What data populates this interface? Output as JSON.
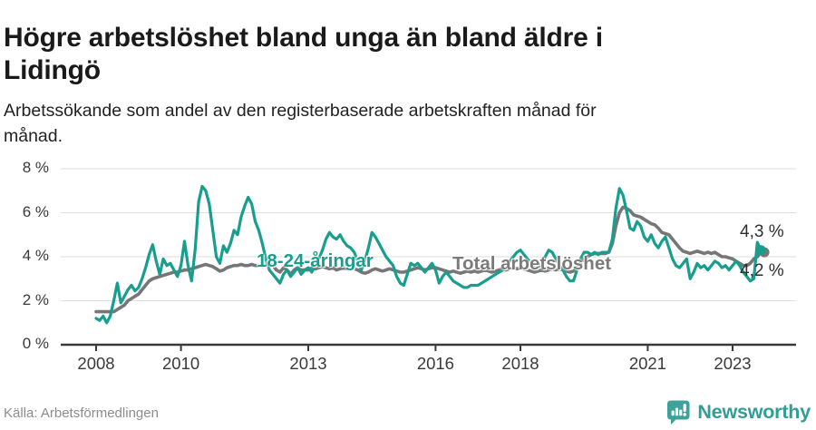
{
  "header": {
    "title": "Högre arbetslöshet bland unga än bland äldre i Lidingö",
    "title_lines": [
      "Högre arbetslöshet bland unga än bland äldre i",
      "Lidingö"
    ],
    "subtitle": "Arbetssökande som andel av den registerbaserade arbetskraften månad för månad.",
    "subtitle_lines": [
      "Arbetssökande som andel av den registerbaserade arbetskraften månad för",
      "månad."
    ]
  },
  "footer": {
    "source": "Källa: Arbetsförmedlingen",
    "brand": "Newsworthy"
  },
  "colors": {
    "youth_line": "#189e8e",
    "total_line": "#767676",
    "grid": "#dedede",
    "axis": "#3a3a3a",
    "logo": "#3fa29a",
    "brand_text": "#2f9e95"
  },
  "chart_data": {
    "type": "line",
    "title": "Högre arbetslöshet bland unga än bland äldre i Lidingö",
    "subtitle": "Arbetssökande som andel av den registerbaserade arbetskraften månad för månad.",
    "unit": "%",
    "x_start_year": 2008,
    "points_per_year": 12,
    "xlim": [
      2008,
      2023.83
    ],
    "ylim": [
      0,
      8
    ],
    "grid": true,
    "grid_color": "#dedede",
    "axis_color": "#3a3a3a",
    "y_ticks": [
      {
        "value": 8,
        "label": "8 %"
      },
      {
        "value": 6,
        "label": "6 %"
      },
      {
        "value": 4,
        "label": "4 %"
      },
      {
        "value": 2,
        "label": "2 %"
      },
      {
        "value": 0,
        "label": "0 %"
      }
    ],
    "x_ticks": [
      {
        "year": 2008,
        "label": "2008"
      },
      {
        "year": 2010,
        "label": "2010"
      },
      {
        "year": 2013,
        "label": "2013"
      },
      {
        "year": 2016,
        "label": "2016"
      },
      {
        "year": 2018,
        "label": "2018"
      },
      {
        "year": 2021,
        "label": "2021"
      },
      {
        "year": 2023,
        "label": "2023"
      }
    ],
    "series": [
      {
        "name": "Total arbetslöshet",
        "color": "#767676",
        "end_label": "4,2 %",
        "end_value": 4.2,
        "values": [
          1.5,
          1.5,
          1.5,
          1.5,
          1.5,
          1.5,
          1.6,
          1.7,
          1.8,
          2.0,
          2.1,
          2.2,
          2.3,
          2.5,
          2.7,
          2.9,
          3.0,
          3.05,
          3.1,
          3.15,
          3.2,
          3.25,
          3.3,
          3.3,
          3.35,
          3.4,
          3.4,
          3.45,
          3.5,
          3.55,
          3.6,
          3.65,
          3.6,
          3.55,
          3.45,
          3.35,
          3.4,
          3.5,
          3.55,
          3.6,
          3.6,
          3.65,
          3.6,
          3.6,
          3.65,
          3.6,
          3.6,
          3.6,
          3.6,
          3.65,
          3.6,
          3.4,
          3.3,
          3.5,
          3.4,
          3.2,
          3.4,
          3.5,
          3.4,
          3.4,
          3.4,
          3.5,
          3.45,
          3.5,
          3.55,
          3.5,
          3.45,
          3.5,
          3.4,
          3.45,
          3.5,
          3.45,
          3.5,
          3.45,
          3.4,
          3.3,
          3.25,
          3.3,
          3.4,
          3.45,
          3.4,
          3.35,
          3.4,
          3.45,
          3.4,
          3.35,
          3.3,
          3.3,
          3.35,
          3.4,
          3.45,
          3.5,
          3.45,
          3.4,
          3.45,
          3.5,
          3.5,
          3.45,
          3.4,
          3.35,
          3.3,
          3.35,
          3.3,
          3.25,
          3.3,
          3.35,
          3.3,
          3.35,
          3.3,
          3.35,
          3.4,
          3.35,
          3.3,
          3.35,
          3.4,
          3.45,
          3.4,
          3.45,
          3.5,
          3.45,
          3.5,
          3.45,
          3.4,
          3.35,
          3.3,
          3.35,
          3.4,
          3.35,
          3.4,
          3.45,
          3.4,
          3.45,
          3.4,
          3.35,
          3.3,
          3.35,
          3.5,
          3.7,
          3.9,
          4.0,
          4.1,
          4.15,
          4.15,
          4.15,
          4.15,
          4.2,
          4.6,
          5.4,
          6.0,
          6.25,
          6.2,
          6.1,
          5.9,
          5.85,
          5.8,
          5.7,
          5.6,
          5.5,
          5.45,
          5.3,
          5.1,
          5.05,
          5.0,
          4.8,
          4.6,
          4.4,
          4.25,
          4.2,
          4.15,
          4.2,
          4.25,
          4.2,
          4.15,
          4.2,
          4.15,
          4.2,
          4.1,
          4.0,
          4.0,
          3.95,
          3.9,
          3.8,
          3.7,
          3.6,
          3.6,
          3.7,
          3.9,
          4.0,
          4.2,
          4.2
        ]
      },
      {
        "name": "18-24-åringar",
        "color": "#189e8e",
        "end_label": "4,3 %",
        "end_value": 4.3,
        "values": [
          1.2,
          1.1,
          1.3,
          1.0,
          1.3,
          2.0,
          2.8,
          1.9,
          2.2,
          2.5,
          2.7,
          2.45,
          2.6,
          3.0,
          3.5,
          4.1,
          4.55,
          3.8,
          3.2,
          3.9,
          3.6,
          3.7,
          3.4,
          3.1,
          3.6,
          4.7,
          3.6,
          2.9,
          4.3,
          6.5,
          7.2,
          7.0,
          6.4,
          5.2,
          4.0,
          3.7,
          4.5,
          4.2,
          4.6,
          5.2,
          5.0,
          5.8,
          6.3,
          6.7,
          6.4,
          5.6,
          5.2,
          4.6,
          3.9,
          3.4,
          3.2,
          3.0,
          2.8,
          3.2,
          3.4,
          3.1,
          3.3,
          3.5,
          3.2,
          3.4,
          3.5,
          3.3,
          3.6,
          3.9,
          4.3,
          4.8,
          5.1,
          4.9,
          4.8,
          5.0,
          4.7,
          4.5,
          4.4,
          4.2,
          3.8,
          3.4,
          3.8,
          4.4,
          5.1,
          4.9,
          4.6,
          4.3,
          4.0,
          3.8,
          3.6,
          3.1,
          2.8,
          2.7,
          3.2,
          3.7,
          3.6,
          3.7,
          3.5,
          3.3,
          3.5,
          3.7,
          3.4,
          2.8,
          3.1,
          3.3,
          3.1,
          2.9,
          2.8,
          2.7,
          2.6,
          2.6,
          2.7,
          2.7,
          2.7,
          2.8,
          2.9,
          3.0,
          3.1,
          3.2,
          3.3,
          3.4,
          3.6,
          3.8,
          4.0,
          4.2,
          4.3,
          4.1,
          3.9,
          3.7,
          3.6,
          3.5,
          3.7,
          4.0,
          4.3,
          4.2,
          3.9,
          3.6,
          3.4,
          3.1,
          2.9,
          2.9,
          3.4,
          3.9,
          4.2,
          4.2,
          4.1,
          4.2,
          4.1,
          4.2,
          4.2,
          4.2,
          4.8,
          6.2,
          7.1,
          6.8,
          6.1,
          5.3,
          5.2,
          5.6,
          5.4,
          4.9,
          4.7,
          5.0,
          4.6,
          4.4,
          4.7,
          4.9,
          4.4,
          3.9,
          3.6,
          3.5,
          3.7,
          3.9,
          3.0,
          3.3,
          3.7,
          3.5,
          3.6,
          3.4,
          3.6,
          3.8,
          3.7,
          3.5,
          3.6,
          3.4,
          3.6,
          3.8,
          3.6,
          3.3,
          3.1,
          2.9,
          3.0,
          4.65,
          4.3
        ]
      }
    ]
  }
}
